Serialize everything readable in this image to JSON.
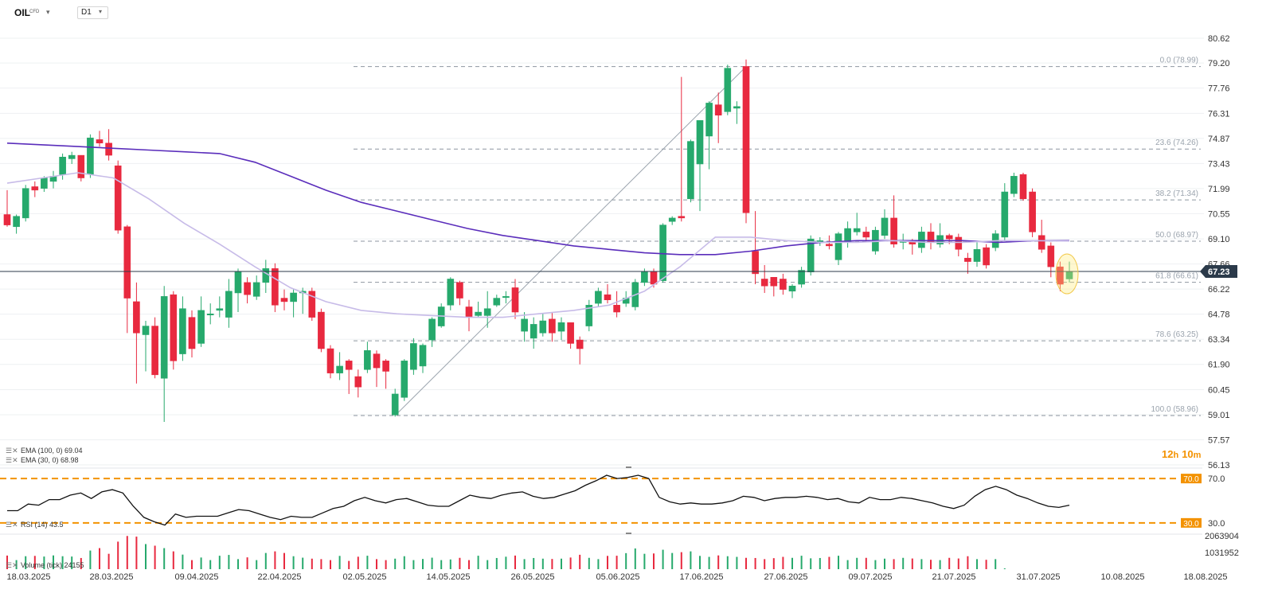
{
  "header": {
    "symbol": "OIL",
    "symbol_type": "CFD",
    "timeframe": "D1"
  },
  "indicators": {
    "ema100_label": "EMA (100, 0) 69.04",
    "ema30_label": "EMA (30, 0) 68.98",
    "rsi_label": "RSI (14) 43.5",
    "volume_label": "Volume (tick) 24155"
  },
  "timer": {
    "hours": "12",
    "h": "h",
    "minutes": "10",
    "m": "m"
  },
  "colors": {
    "bull": "#26a96c",
    "bear": "#e8293f",
    "ema100": "#5a2dbb",
    "ema30": "#c7bbe8",
    "fib": "#8e96a0",
    "accent": "#f39200",
    "price_tag": "#2b3a4a"
  },
  "chart_data": [
    {
      "type": "candlestick",
      "title": "",
      "current_price": "67.23",
      "current_price_value": 67.23,
      "ylim": [
        56.13,
        80.62
      ],
      "y_ticks": [
        "80.62",
        "79.20",
        "77.76",
        "76.31",
        "74.87",
        "73.43",
        "71.99",
        "70.55",
        "69.10",
        "67.66",
        "66.22",
        "64.78",
        "63.34",
        "61.90",
        "60.45",
        "59.01",
        "57.57",
        "56.13"
      ],
      "x_ticks": [
        "18.03.2025",
        "28.03.2025",
        "09.04.2025",
        "22.04.2025",
        "02.05.2025",
        "14.05.2025",
        "26.05.2025",
        "05.06.2025",
        "17.06.2025",
        "27.06.2025",
        "09.07.2025",
        "21.07.2025",
        "31.07.2025",
        "10.08.2025",
        "18.08.2025"
      ],
      "fibonacci": [
        {
          "label": "0.0 (78.99)",
          "value": 78.99
        },
        {
          "label": "23.6 (74.26)",
          "value": 74.26
        },
        {
          "label": "38.2 (71.34)",
          "value": 71.34
        },
        {
          "label": "50.0 (68.97)",
          "value": 68.97
        },
        {
          "label": "61.8 (66.61)",
          "value": 66.61
        },
        {
          "label": "78.6 (63.25)",
          "value": 63.25
        },
        {
          "label": "100.0 (58.96)",
          "value": 58.96
        }
      ],
      "candles": [
        [
          70.5,
          69.9,
          71.9,
          69.8
        ],
        [
          69.8,
          70.4,
          70.5,
          69.4
        ],
        [
          70.3,
          72.0,
          72.2,
          70.1
        ],
        [
          72.1,
          71.9,
          72.4,
          71.5
        ],
        [
          72.0,
          72.6,
          72.7,
          71.8
        ],
        [
          72.4,
          72.7,
          73.0,
          72.0
        ],
        [
          72.8,
          73.8,
          74.0,
          72.5
        ],
        [
          73.7,
          73.9,
          74.1,
          73.4
        ],
        [
          73.9,
          72.6,
          73.9,
          72.4
        ],
        [
          72.8,
          74.9,
          75.1,
          72.6
        ],
        [
          74.8,
          74.6,
          75.3,
          74.4
        ],
        [
          74.6,
          73.9,
          75.4,
          73.6
        ],
        [
          73.3,
          69.6,
          73.6,
          69.4
        ],
        [
          69.8,
          65.7,
          69.9,
          63.7
        ],
        [
          65.5,
          63.7,
          66.6,
          60.8
        ],
        [
          63.6,
          64.1,
          64.4,
          61.5
        ],
        [
          64.1,
          61.3,
          64.6,
          61.1
        ],
        [
          61.1,
          65.8,
          66.4,
          58.6
        ],
        [
          65.9,
          62.1,
          66.1,
          61.6
        ],
        [
          62.5,
          65.1,
          65.8,
          62.1
        ],
        [
          64.6,
          62.8,
          65.0,
          62.3
        ],
        [
          63.1,
          65.0,
          65.8,
          62.9
        ],
        [
          64.8,
          64.8,
          65.4,
          64.2
        ],
        [
          65.0,
          65.1,
          65.8,
          64.6
        ],
        [
          64.6,
          66.1,
          66.8,
          64.0
        ],
        [
          66.0,
          67.2,
          67.4,
          64.9
        ],
        [
          66.6,
          65.9,
          66.9,
          65.4
        ],
        [
          65.8,
          66.6,
          67.0,
          65.6
        ],
        [
          66.6,
          67.4,
          67.9,
          66.0
        ],
        [
          67.4,
          65.3,
          67.7,
          64.9
        ],
        [
          65.7,
          65.5,
          66.2,
          65.0
        ],
        [
          65.5,
          66.0,
          66.2,
          64.6
        ],
        [
          66.0,
          66.1,
          66.3,
          64.8
        ],
        [
          66.1,
          64.6,
          66.3,
          64.4
        ],
        [
          64.9,
          62.8,
          65.1,
          62.6
        ],
        [
          62.8,
          61.4,
          63.0,
          61.1
        ],
        [
          61.4,
          61.8,
          62.6,
          61.0
        ],
        [
          62.1,
          61.6,
          62.2,
          60.2
        ],
        [
          61.2,
          60.6,
          61.6,
          60.0
        ],
        [
          61.6,
          62.7,
          63.2,
          61.4
        ],
        [
          62.5,
          61.7,
          62.7,
          60.6
        ],
        [
          62.1,
          61.5,
          62.2,
          60.5
        ],
        [
          59.0,
          60.2,
          60.5,
          58.9
        ],
        [
          60.0,
          62.1,
          62.2,
          59.8
        ],
        [
          61.6,
          63.1,
          63.4,
          61.3
        ],
        [
          61.8,
          63.0,
          63.1,
          61.4
        ],
        [
          63.3,
          64.5,
          64.6,
          62.9
        ],
        [
          64.1,
          65.2,
          65.4,
          64.0
        ],
        [
          65.3,
          66.8,
          66.9,
          65.0
        ],
        [
          66.6,
          65.7,
          66.7,
          65.3
        ],
        [
          65.2,
          64.6,
          65.6,
          63.8
        ],
        [
          64.7,
          64.9,
          65.5,
          64.6
        ],
        [
          64.7,
          65.1,
          66.1,
          64.0
        ],
        [
          65.3,
          65.7,
          65.9,
          65.2
        ],
        [
          65.8,
          65.8,
          66.1,
          65.4
        ],
        [
          66.3,
          64.9,
          66.8,
          64.5
        ],
        [
          63.8,
          64.5,
          64.9,
          63.2
        ],
        [
          63.4,
          64.2,
          64.6,
          62.8
        ],
        [
          63.7,
          64.4,
          64.8,
          63.5
        ],
        [
          64.5,
          63.7,
          64.9,
          63.2
        ],
        [
          63.8,
          64.3,
          64.6,
          63.3
        ],
        [
          64.3,
          63.1,
          64.3,
          62.8
        ],
        [
          63.3,
          62.8,
          63.5,
          61.9
        ],
        [
          64.1,
          65.3,
          65.6,
          63.8
        ],
        [
          65.4,
          66.1,
          66.3,
          65.2
        ],
        [
          65.9,
          65.6,
          66.5,
          65.4
        ],
        [
          65.3,
          64.9,
          66.1,
          64.6
        ],
        [
          65.4,
          65.7,
          66.1,
          65.2
        ],
        [
          65.2,
          66.6,
          66.8,
          65.0
        ],
        [
          66.6,
          67.2,
          67.4,
          66.4
        ],
        [
          67.2,
          66.5,
          67.4,
          66.3
        ],
        [
          66.7,
          69.9,
          70.0,
          66.6
        ],
        [
          70.1,
          70.3,
          70.4,
          69.9
        ],
        [
          70.4,
          70.3,
          78.4,
          70.1
        ],
        [
          71.4,
          74.7,
          74.8,
          71.2
        ],
        [
          73.4,
          75.9,
          75.9,
          70.7
        ],
        [
          75.0,
          76.9,
          77.0,
          73.1
        ],
        [
          76.8,
          76.2,
          77.5,
          74.6
        ],
        [
          76.4,
          78.9,
          79.1,
          76.2
        ],
        [
          76.6,
          76.7,
          77.0,
          75.7
        ],
        [
          79.0,
          70.6,
          79.4,
          70.0
        ],
        [
          68.4,
          67.1,
          70.7,
          66.5
        ],
        [
          66.8,
          66.4,
          67.6,
          66.0
        ],
        [
          66.9,
          66.4,
          66.9,
          65.8
        ],
        [
          66.8,
          66.2,
          67.1,
          65.9
        ],
        [
          66.1,
          66.4,
          66.5,
          65.7
        ],
        [
          66.5,
          67.3,
          67.5,
          66.3
        ],
        [
          67.2,
          69.1,
          69.3,
          67.0
        ],
        [
          69.0,
          69.0,
          69.2,
          68.7
        ],
        [
          68.8,
          68.7,
          69.3,
          68.5
        ],
        [
          67.9,
          69.4,
          69.5,
          67.6
        ],
        [
          68.9,
          69.7,
          70.1,
          68.6
        ],
        [
          69.5,
          69.7,
          70.6,
          69.3
        ],
        [
          69.5,
          69.2,
          69.8,
          68.9
        ],
        [
          68.4,
          69.6,
          69.8,
          68.2
        ],
        [
          69.3,
          70.3,
          70.8,
          69.1
        ],
        [
          70.3,
          68.8,
          71.6,
          68.6
        ],
        [
          68.9,
          69.0,
          69.4,
          68.5
        ],
        [
          69.0,
          68.8,
          69.1,
          68.2
        ],
        [
          68.6,
          69.5,
          69.8,
          68.3
        ],
        [
          69.5,
          68.9,
          70.0,
          68.5
        ],
        [
          68.8,
          69.3,
          70.0,
          68.6
        ],
        [
          69.3,
          69.1,
          69.4,
          68.8
        ],
        [
          69.2,
          68.5,
          69.4,
          68.1
        ],
        [
          68.0,
          67.8,
          68.3,
          67.1
        ],
        [
          67.8,
          68.5,
          68.9,
          67.5
        ],
        [
          68.6,
          67.6,
          68.8,
          67.4
        ],
        [
          68.6,
          69.4,
          69.6,
          68.4
        ],
        [
          69.2,
          71.8,
          72.3,
          69.0
        ],
        [
          71.7,
          72.7,
          72.9,
          71.5
        ],
        [
          72.8,
          71.4,
          72.9,
          71.3
        ],
        [
          71.8,
          69.5,
          72.0,
          69.2
        ],
        [
          69.3,
          68.5,
          70.2,
          68.3
        ],
        [
          68.7,
          67.5,
          68.9,
          66.9
        ],
        [
          67.5,
          66.5,
          67.8,
          66.1
        ],
        [
          66.8,
          67.2,
          67.8,
          66.6
        ]
      ],
      "ema100": [
        74.6,
        74.5,
        74.4,
        74.3,
        74.2,
        74.1,
        74.0,
        73.5,
        72.7,
        71.9,
        71.2,
        70.7,
        70.2,
        69.7,
        69.3,
        69.0,
        68.7,
        68.5,
        68.3,
        68.2,
        68.2,
        68.4,
        68.7,
        68.9,
        69.0,
        69.0,
        69.0,
        69.0,
        68.9,
        69.0,
        69.0
      ],
      "ema30": [
        72.3,
        72.6,
        72.9,
        72.6,
        71.4,
        70.0,
        68.8,
        67.5,
        66.3,
        65.5,
        65.0,
        64.8,
        64.7,
        64.6,
        64.6,
        64.8,
        65.0,
        65.3,
        66.1,
        67.5,
        69.2,
        69.2,
        69.0,
        68.9,
        68.9,
        69.0,
        68.9,
        68.9,
        69.0,
        69.0,
        68.98
      ]
    },
    {
      "type": "line",
      "title": "RSI (14) 43.5",
      "ylim": [
        22,
        78
      ],
      "levels": [
        {
          "label": "70.0",
          "value": 70
        },
        {
          "label": "30.0",
          "value": 30
        }
      ],
      "y_ticks": [
        "70.0",
        "30.0"
      ],
      "values": [
        41,
        41,
        47,
        46,
        51,
        51,
        55,
        57,
        52,
        58,
        60,
        57,
        45,
        35,
        31,
        28,
        38,
        35,
        36,
        36,
        36,
        39,
        42,
        41,
        38,
        35,
        33,
        36,
        35,
        35,
        39,
        43,
        45,
        50,
        53,
        50,
        48,
        51,
        52,
        49,
        46,
        45,
        45,
        50,
        55,
        53,
        52,
        55,
        57,
        58,
        54,
        52,
        53,
        56,
        59,
        64,
        68,
        73,
        70,
        71,
        73,
        70,
        53,
        49,
        47,
        48,
        47,
        47,
        48,
        50,
        54,
        53,
        50,
        52,
        53,
        53,
        54,
        53,
        51,
        52,
        49,
        48,
        53,
        51,
        51,
        53,
        52,
        50,
        48,
        45,
        43,
        46,
        54,
        60,
        63,
        60,
        55,
        52,
        48,
        45,
        44,
        46
      ],
      "current": 43.5
    },
    {
      "type": "bar",
      "title": "Volume (tick) 24155",
      "ylim": [
        0,
        2063904
      ],
      "y_ticks": [
        "2063904",
        "1031952"
      ],
      "values": [
        840000,
        560000,
        800000,
        820000,
        780000,
        850000,
        800000,
        780000,
        690000,
        1150000,
        1300000,
        950000,
        1700000,
        2050000,
        2010000,
        1550000,
        1450000,
        1300000,
        1100000,
        900000,
        560000,
        720000,
        560000,
        830000,
        880000,
        620000,
        730000,
        560000,
        1000000,
        1100000,
        1000000,
        800000,
        710000,
        650000,
        620000,
        560000,
        820000,
        510000,
        770000,
        830000,
        620000,
        560000,
        650000,
        800000,
        560000,
        630000,
        710000,
        560000,
        600000,
        700000,
        560000,
        830000,
        560000,
        690000,
        770000,
        840000,
        620000,
        690000,
        650000,
        630000,
        650000,
        720000,
        890000,
        700000,
        620000,
        820000,
        830000,
        990000,
        1280000,
        950000,
        970000,
        1200000,
        1000000,
        1050000,
        1100000,
        820000,
        760000,
        850000,
        800000,
        760000,
        700000,
        690000,
        620000,
        680000,
        760000,
        700000,
        830000,
        670000,
        690000,
        760000,
        830000,
        560000,
        700000,
        700000,
        560000,
        650000,
        620000,
        700000,
        660000,
        620000,
        580000,
        560000,
        700000,
        660000,
        800000,
        620000,
        580000,
        620000,
        24155
      ],
      "current": "24155"
    }
  ]
}
